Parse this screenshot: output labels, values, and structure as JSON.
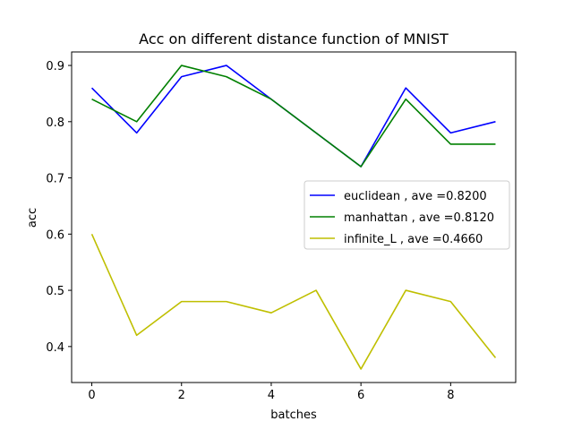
{
  "chart_data": {
    "type": "line",
    "title": "Acc on different distance function of MNIST",
    "xlabel": "batches",
    "ylabel": "acc",
    "xlim": [
      -0.45,
      9.45
    ],
    "ylim": [
      0.336,
      0.924
    ],
    "xticks": [
      0,
      2,
      4,
      6,
      8
    ],
    "yticks": [
      0.4,
      0.5,
      0.6,
      0.7,
      0.8,
      0.9
    ],
    "x": [
      0,
      1,
      2,
      3,
      4,
      5,
      6,
      7,
      8,
      9
    ],
    "grid": false,
    "legend_position": "center-right",
    "series": [
      {
        "name": "euclidean , ave =0.8200",
        "color": "#0000ff",
        "values": [
          0.86,
          0.78,
          0.88,
          0.9,
          0.84,
          0.78,
          0.72,
          0.86,
          0.78,
          0.8
        ]
      },
      {
        "name": "manhattan , ave =0.8120",
        "color": "#008000",
        "values": [
          0.84,
          0.8,
          0.9,
          0.88,
          0.84,
          0.78,
          0.72,
          0.84,
          0.76,
          0.76
        ]
      },
      {
        "name": "infinite_L , ave =0.4660",
        "color": "#bfbf00",
        "values": [
          0.6,
          0.42,
          0.48,
          0.48,
          0.46,
          0.5,
          0.36,
          0.5,
          0.48,
          0.38
        ]
      }
    ]
  }
}
